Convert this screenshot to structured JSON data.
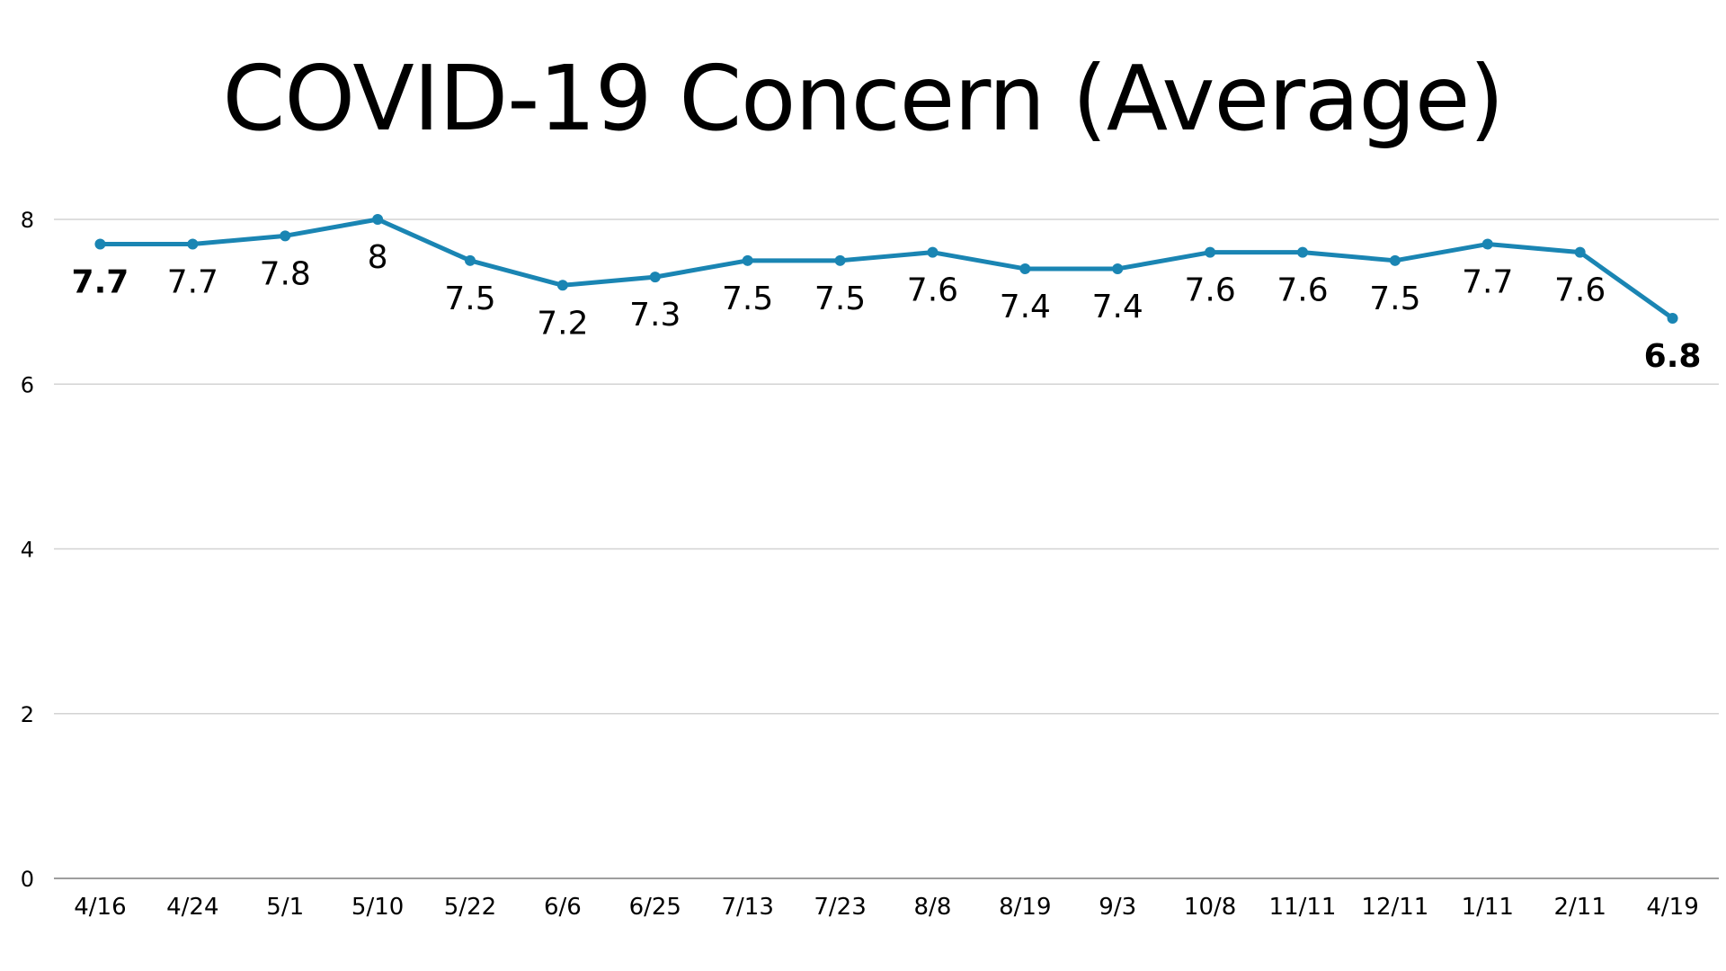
{
  "chart_data": {
    "type": "line",
    "title": "COVID-19 Concern (Average)",
    "xlabel": "",
    "ylabel": "",
    "categories": [
      "4/16",
      "4/24",
      "5/1",
      "5/10",
      "5/22",
      "6/6",
      "6/25",
      "7/13",
      "7/23",
      "8/8",
      "8/19",
      "9/3",
      "10/8",
      "11/11",
      "12/11",
      "1/11",
      "2/11",
      "4/19"
    ],
    "series": [
      {
        "values": [
          7.7,
          7.7,
          7.8,
          8,
          7.5,
          7.2,
          7.3,
          7.5,
          7.5,
          7.6,
          7.4,
          7.4,
          7.6,
          7.6,
          7.5,
          7.7,
          7.6,
          6.8
        ],
        "data_labels": [
          "7.7",
          "7.7",
          "7.8",
          "8",
          "7.5",
          "7.2",
          "7.3",
          "7.5",
          "7.5",
          "7.6",
          "7.4",
          "7.4",
          "7.6",
          "7.6",
          "7.5",
          "7.7",
          "7.6",
          "6.8"
        ],
        "bold_labels": [
          0,
          17
        ],
        "color": "#1a85b3"
      }
    ],
    "ylim": [
      0,
      8
    ],
    "y_ticks": [
      "0",
      "2",
      "4",
      "6",
      "8"
    ],
    "y_tick_values": [
      0,
      2,
      4,
      6,
      8
    ],
    "grid": true,
    "legend": "none"
  }
}
